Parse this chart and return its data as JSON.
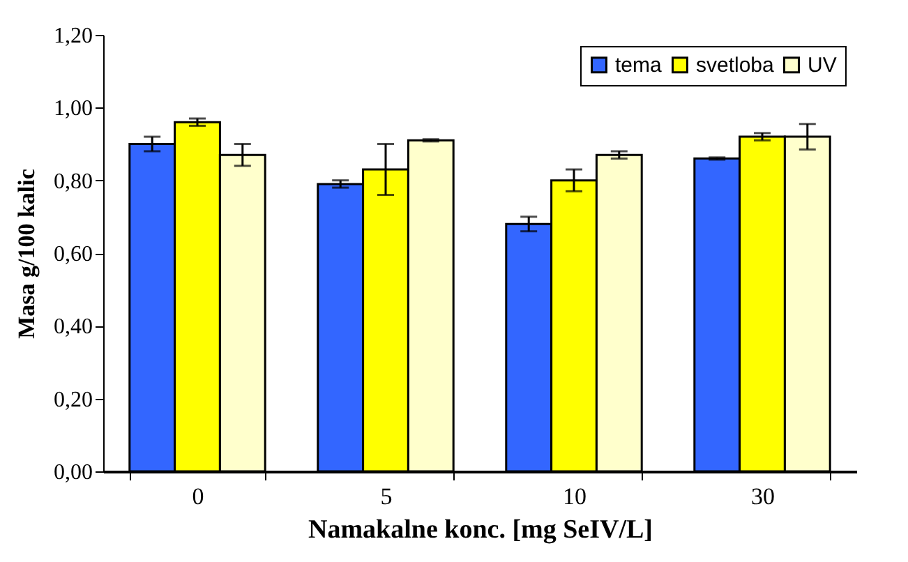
{
  "chart_data": {
    "type": "bar",
    "xlabel": "Namakalne konc. [mg SeIV/L]",
    "ylabel": "Masa g/100 kalic",
    "categories": [
      "0",
      "5",
      "10",
      "30"
    ],
    "series": [
      {
        "name": "tema",
        "color": "#3366ff",
        "values": [
          0.9,
          0.79,
          0.68,
          0.86
        ],
        "errors": [
          0.02,
          0.01,
          0.02,
          0.003
        ]
      },
      {
        "name": "svetloba",
        "color": "#ffff00",
        "values": [
          0.96,
          0.83,
          0.8,
          0.92
        ],
        "errors": [
          0.01,
          0.07,
          0.03,
          0.01
        ]
      },
      {
        "name": "UV",
        "color": "#ffffcc",
        "values": [
          0.87,
          0.91,
          0.87,
          0.92
        ],
        "errors": [
          0.03,
          0.003,
          0.01,
          0.035
        ]
      }
    ],
    "ylim": [
      0,
      1.2
    ],
    "yticks": [
      {
        "value": 0,
        "label": "0,00"
      },
      {
        "value": 0.2,
        "label": "0,20"
      },
      {
        "value": 0.4,
        "label": "0,40"
      },
      {
        "value": 0.6,
        "label": "0,60"
      },
      {
        "value": 0.8,
        "label": "0,80"
      },
      {
        "value": 1.0,
        "label": "1,00"
      },
      {
        "value": 1.2,
        "label": "1,20"
      }
    ],
    "legend": "top right",
    "grid": false
  }
}
